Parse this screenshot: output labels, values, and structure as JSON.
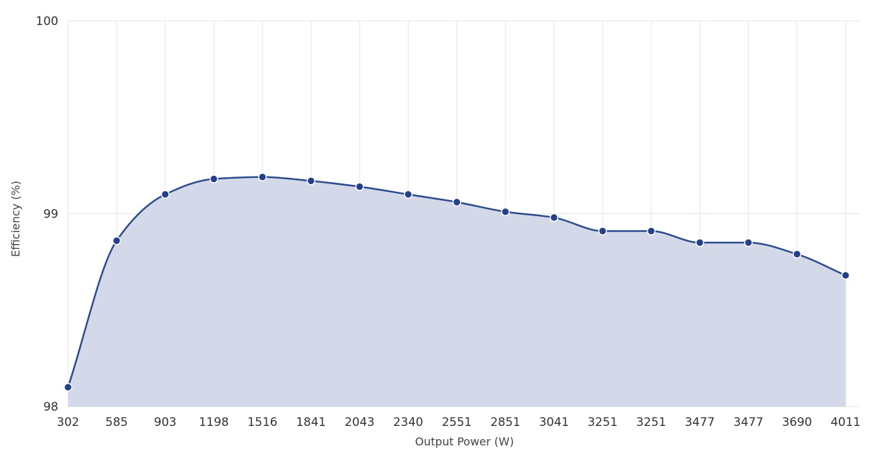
{
  "chart_data": {
    "type": "area",
    "xlabel": "Output Power (W)",
    "ylabel": "Efficiency (%)",
    "categories": [
      "302",
      "585",
      "903",
      "1198",
      "1516",
      "1841",
      "2043",
      "2340",
      "2551",
      "2851",
      "3041",
      "3251",
      "3251",
      "3477",
      "3477",
      "3690",
      "4011"
    ],
    "values": [
      98.1,
      98.86,
      99.1,
      99.18,
      99.19,
      99.17,
      99.14,
      99.1,
      99.06,
      99.01,
      98.98,
      98.91,
      98.91,
      98.85,
      98.85,
      98.79,
      98.68
    ],
    "ylim": [
      98,
      100
    ],
    "yticks": [
      "98",
      "99",
      "100"
    ],
    "grid": true,
    "colors": {
      "line": "#2c4a8c",
      "fill": "#d3d9e8",
      "marker": "#23408a"
    }
  }
}
